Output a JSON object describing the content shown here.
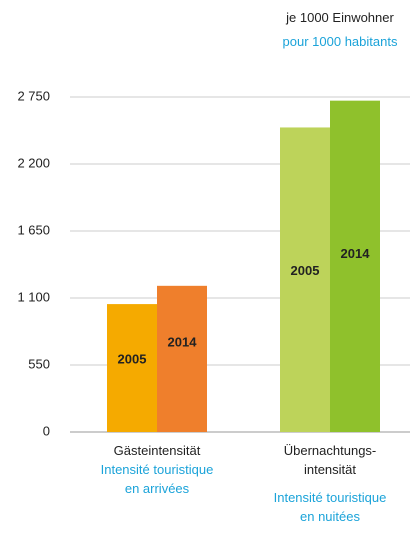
{
  "chart_data": {
    "type": "bar",
    "unit_label": "je 1000 Einwohner",
    "unit_label_fr": "pour 1000 habitants",
    "categories": [
      "Gästeintensität",
      "Übernachtungs-\nintensität"
    ],
    "categories_fr": [
      "Intensité touristique\nen arrivées",
      "Intensité touristique\nen nuitées"
    ],
    "series": [
      {
        "name": "2005",
        "colors": [
          "#f5aa00",
          "#bdd35a"
        ],
        "values": [
          1050,
          2500
        ]
      },
      {
        "name": "2014",
        "colors": [
          "#ef7f2c",
          "#8fc12c"
        ],
        "values": [
          1200,
          2720
        ]
      }
    ],
    "ylim": [
      0,
      2750
    ],
    "yticks": [
      0,
      550,
      {
        "value": 1100,
        "label": "1 100"
      },
      {
        "value": 1650,
        "label": "1 650"
      },
      {
        "value": 2200,
        "label": "2 200"
      },
      {
        "value": 2750,
        "label": "2 750"
      }
    ],
    "grid": true
  }
}
